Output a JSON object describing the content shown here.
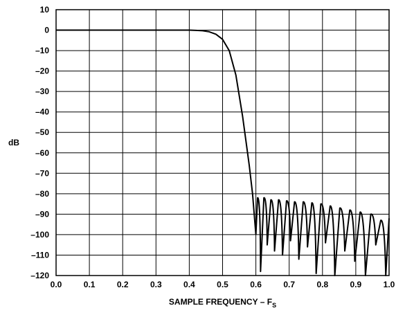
{
  "chart_data": {
    "type": "line",
    "title": "",
    "xlabel": "SAMPLE FREQUENCY – F",
    "xlabel_subscript": "S",
    "ylabel": "dB",
    "xlim": [
      0.0,
      1.0
    ],
    "ylim": [
      -120,
      10
    ],
    "x_ticks": [
      "0.0",
      "0.1",
      "0.2",
      "0.3",
      "0.4",
      "0.5",
      "0.6",
      "0.7",
      "0.8",
      "0.9",
      "1.0"
    ],
    "y_ticks": [
      "10",
      "0",
      "–10",
      "–20",
      "–30",
      "–40",
      "–50",
      "–60",
      "–70",
      "–80",
      "–90",
      "–100",
      "–110",
      "–120"
    ],
    "grid": true,
    "legend": "none",
    "colors": {
      "line": "#000000",
      "grid": "#000000"
    },
    "series": [
      {
        "x": [
          0.0,
          0.1,
          0.2,
          0.3,
          0.4,
          0.42,
          0.44,
          0.46,
          0.48,
          0.5,
          0.52,
          0.54,
          0.55,
          0.56,
          0.57,
          0.58,
          0.59,
          0.595,
          0.6
        ],
        "y": [
          0,
          0,
          0,
          0,
          0,
          -0.1,
          -0.3,
          -0.8,
          -2,
          -4.5,
          -10,
          -22,
          -32,
          -42,
          -54,
          -66,
          -80,
          -90,
          -100
        ]
      }
    ],
    "stopband": {
      "peaks": [
        [
          0.605,
          -82
        ],
        [
          0.624,
          -82
        ],
        [
          0.645,
          -83
        ],
        [
          0.668,
          -83
        ],
        [
          0.692,
          -83.5
        ],
        [
          0.716,
          -84
        ],
        [
          0.742,
          -84
        ],
        [
          0.768,
          -84.5
        ],
        [
          0.795,
          -85
        ],
        [
          0.823,
          -86
        ],
        [
          0.852,
          -87
        ],
        [
          0.882,
          -88
        ],
        [
          0.913,
          -89
        ],
        [
          0.945,
          -90
        ],
        [
          0.975,
          -93
        ],
        [
          1.0,
          -92
        ]
      ],
      "nulls": [
        [
          0.6,
          -100
        ],
        [
          0.614,
          -118
        ],
        [
          0.634,
          -105
        ],
        [
          0.656,
          -108
        ],
        [
          0.68,
          -110
        ],
        [
          0.704,
          -103
        ],
        [
          0.729,
          -112
        ],
        [
          0.755,
          -106
        ],
        [
          0.781,
          -119
        ],
        [
          0.809,
          -104
        ],
        [
          0.837,
          -120
        ],
        [
          0.867,
          -108
        ],
        [
          0.897,
          -113
        ],
        [
          0.929,
          -120
        ],
        [
          0.96,
          -105
        ],
        [
          0.99,
          -120
        ]
      ]
    }
  }
}
